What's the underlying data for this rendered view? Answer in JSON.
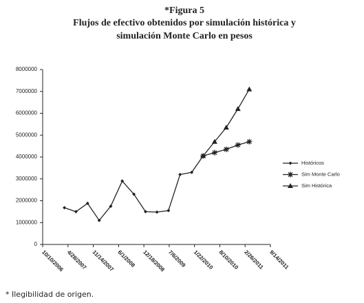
{
  "chart_data": {
    "type": "line",
    "title": "*Figura 5",
    "subtitle": [
      "Flujos de efectivo obtenidos por simulación histórica y",
      "simulación Monte Carlo en pesos"
    ],
    "footnote": "* Ilegibilidad de origen.",
    "series": [
      {
        "name": "Históricos",
        "color": "#222222",
        "marker": "diamond",
        "x": [
          "2007-03-31",
          "2007-06-30",
          "2007-09-30",
          "2007-12-31",
          "2008-03-31",
          "2008-06-30",
          "2008-09-30",
          "2008-12-31",
          "2009-03-31",
          "2009-06-30",
          "2009-09-30",
          "2009-12-31",
          "2010-03-31"
        ],
        "values": [
          1680000,
          1500000,
          1880000,
          1100000,
          1750000,
          2900000,
          2300000,
          1500000,
          1480000,
          1550000,
          3200000,
          3300000,
          4050000
        ]
      },
      {
        "name": "Sim Monte Carlo",
        "color": "#222222",
        "marker": "asterisk",
        "x": [
          "2010-03-31",
          "2010-06-30",
          "2010-09-30",
          "2010-12-31",
          "2011-03-31"
        ],
        "values": [
          4050000,
          4200000,
          4350000,
          4550000,
          4700000
        ]
      },
      {
        "name": "Sim Histórica",
        "color": "#222222",
        "marker": "triangle",
        "x": [
          "2010-03-31",
          "2010-06-30",
          "2010-09-30",
          "2010-12-31",
          "2011-03-31"
        ],
        "values": [
          4050000,
          4700000,
          5350000,
          6200000,
          7100000
        ]
      }
    ],
    "xlim": [
      "2006-10-10",
      "2011-09-14"
    ],
    "xticks": [
      {
        "value": "2006-10-10",
        "label": "10/10/2006"
      },
      {
        "value": "2007-04-28",
        "label": "4/28/2007"
      },
      {
        "value": "2007-11-14",
        "label": "11/14/2007"
      },
      {
        "value": "2008-06-01",
        "label": "6/1/2008"
      },
      {
        "value": "2008-12-18",
        "label": "12/18/2008"
      },
      {
        "value": "2009-07-06",
        "label": "7/6/2009"
      },
      {
        "value": "2010-01-22",
        "label": "1/22/2010"
      },
      {
        "value": "2010-08-10",
        "label": "8/10/2010"
      },
      {
        "value": "2011-02-26",
        "label": "2/26/2011"
      },
      {
        "value": "2011-09-14",
        "label": "9/14/2011"
      }
    ],
    "ylim": [
      0,
      8000000
    ],
    "yticks": [
      0,
      1000000,
      2000000,
      3000000,
      4000000,
      5000000,
      6000000,
      7000000,
      8000000
    ],
    "grid": false,
    "legend": "right"
  }
}
